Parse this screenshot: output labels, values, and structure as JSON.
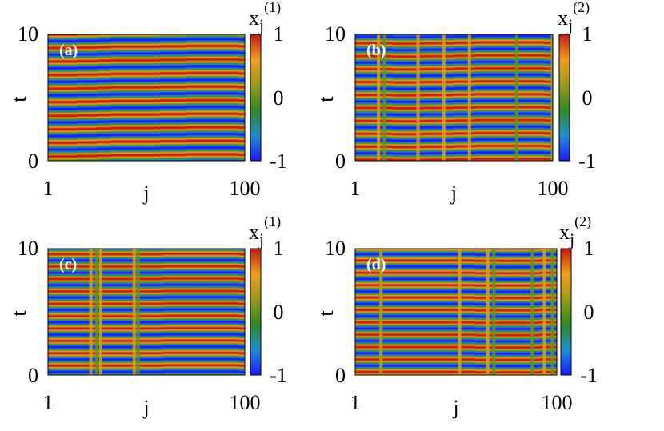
{
  "chart_data": [
    {
      "type": "heatmap",
      "panel_label": "(a)",
      "xlabel": "j",
      "ylabel": "t",
      "xticks": [
        "1",
        "100"
      ],
      "yticks": [
        "0",
        "10"
      ],
      "xlim": [
        1,
        100
      ],
      "ylim": [
        0,
        10
      ],
      "colorbar": {
        "title_base": "x",
        "title_sub": "j",
        "title_sup": "(1)",
        "ticks": [
          "-1",
          "0",
          "1"
        ],
        "range": [
          -1,
          1
        ]
      },
      "colormap": [
        "#1a1aff",
        "#1f8fd0",
        "#2e8b22",
        "#9a9a18",
        "#f2a01a",
        "#c41a10"
      ],
      "stripes": {
        "count": 10.5,
        "phase": 0.0,
        "wave_amplitude": 0.06
      },
      "defects": []
    },
    {
      "type": "heatmap",
      "panel_label": "(b)",
      "xlabel": "j",
      "ylabel": "t",
      "xticks": [
        "1",
        "100"
      ],
      "yticks": [
        "0",
        "10"
      ],
      "xlim": [
        1,
        100
      ],
      "ylim": [
        0,
        10
      ],
      "colorbar": {
        "title_base": "x",
        "title_sub": "j",
        "title_sup": "(2)",
        "ticks": [
          "-1",
          "0",
          "1"
        ],
        "range": [
          -1,
          1
        ]
      },
      "colormap": [
        "#1a1aff",
        "#1f8fd0",
        "#2e8b22",
        "#9a9a18",
        "#f2a01a",
        "#c41a10"
      ],
      "stripes": {
        "count": 11,
        "phase": 0.3,
        "wave_amplitude": 0.02
      },
      "defects": [
        {
          "j": 12,
          "value": 0.45
        },
        {
          "j": 15,
          "value": 0.0
        },
        {
          "j": 32,
          "value": 0.45
        },
        {
          "j": 45,
          "value": 0.45
        },
        {
          "j": 58,
          "value": 0.45
        },
        {
          "j": 82,
          "value": 0.0
        },
        {
          "j": 100,
          "value": 0.2
        }
      ]
    },
    {
      "type": "heatmap",
      "panel_label": "(c)",
      "xlabel": "j",
      "ylabel": "t",
      "xticks": [
        "1",
        "100"
      ],
      "yticks": [
        "0",
        "10"
      ],
      "xlim": [
        1,
        100
      ],
      "ylim": [
        0,
        10
      ],
      "colorbar": {
        "title_base": "x",
        "title_sub": "j",
        "title_sup": "(1)",
        "ticks": [
          "-1",
          "0",
          "1"
        ],
        "range": [
          -1,
          1
        ]
      },
      "colormap": [
        "#1a1aff",
        "#1f8fd0",
        "#2e8b22",
        "#9a9a18",
        "#f2a01a",
        "#c41a10"
      ],
      "stripes": {
        "count": 11.5,
        "phase": 0.6,
        "wave_amplitude": 0.01
      },
      "defects": [
        {
          "j": 22,
          "value": 0.45
        },
        {
          "j": 25,
          "value": 0.0
        },
        {
          "j": 27,
          "value": 0.45
        },
        {
          "j": 44,
          "value": 0.45
        },
        {
          "j": 46,
          "value": 0.0
        }
      ]
    },
    {
      "type": "heatmap",
      "panel_label": "(d)",
      "xlabel": "j",
      "ylabel": "t",
      "xticks": [
        "1",
        "100"
      ],
      "yticks": [
        "0",
        "10"
      ],
      "xlim": [
        1,
        100
      ],
      "ylim": [
        0,
        10
      ],
      "colorbar": {
        "title_base": "x",
        "title_sub": "j",
        "title_sup": "(2)",
        "ticks": [
          "-1",
          "0",
          "1"
        ],
        "range": [
          -1,
          1
        ]
      },
      "colormap": [
        "#1a1aff",
        "#1f8fd0",
        "#2e8b22",
        "#9a9a18",
        "#f2a01a",
        "#c41a10"
      ],
      "stripes": {
        "count": 11.5,
        "phase": 0.1,
        "wave_amplitude": 0.01
      },
      "defects": [
        {
          "j": 13,
          "value": 0.3
        },
        {
          "j": 52,
          "value": 0.45
        },
        {
          "j": 66,
          "value": 0.45
        },
        {
          "j": 69,
          "value": 0.0
        },
        {
          "j": 88,
          "value": 0.0
        },
        {
          "j": 94,
          "value": 0.45
        },
        {
          "j": 98,
          "value": 0.0
        }
      ]
    }
  ]
}
